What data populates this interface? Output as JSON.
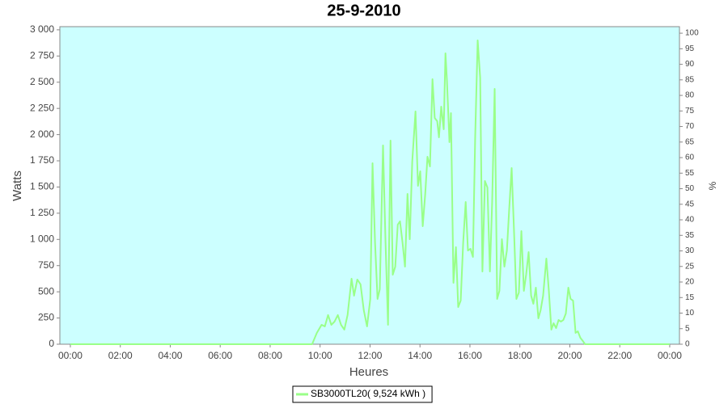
{
  "chart_data": {
    "type": "line",
    "title": "25-9-2010",
    "x_label": "Heures",
    "y_label": "Watts",
    "y2_label": "%",
    "x": [
      0,
      9.68,
      9.87,
      10.06,
      10.19,
      10.32,
      10.45,
      10.58,
      10.71,
      10.84,
      10.97,
      11.1,
      11.26,
      11.36,
      11.49,
      11.62,
      11.75,
      11.88,
      12.01,
      12.1,
      12.2,
      12.3,
      12.39,
      12.52,
      12.62,
      12.72,
      12.82,
      12.91,
      13.01,
      13.11,
      13.2,
      13.3,
      13.4,
      13.5,
      13.59,
      13.69,
      13.82,
      13.92,
      14.01,
      14.11,
      14.21,
      14.3,
      14.4,
      14.5,
      14.59,
      14.69,
      14.76,
      14.85,
      14.95,
      15.02,
      15.08,
      15.18,
      15.24,
      15.34,
      15.44,
      15.53,
      15.63,
      15.73,
      15.83,
      15.92,
      16.02,
      16.12,
      16.21,
      16.31,
      16.41,
      16.5,
      16.6,
      16.7,
      16.8,
      16.89,
      16.99,
      17.09,
      17.18,
      17.28,
      17.38,
      17.48,
      17.57,
      17.67,
      17.77,
      17.86,
      17.96,
      18.06,
      18.16,
      18.25,
      18.35,
      18.45,
      18.54,
      18.64,
      18.74,
      18.83,
      18.93,
      19.06,
      19.16,
      19.26,
      19.35,
      19.45,
      19.55,
      19.64,
      19.74,
      19.84,
      19.94,
      20.03,
      20.13,
      20.23,
      20.32,
      20.42,
      20.52,
      20.61,
      24
    ],
    "series": [
      {
        "name": "SB3000TL20( 9,524 kWh )",
        "color": "#99ff88",
        "values": [
          0,
          0,
          108,
          185,
          170,
          278,
          185,
          216,
          278,
          185,
          139,
          278,
          625,
          463,
          617,
          571,
          324,
          170,
          432,
          1727,
          972,
          432,
          524,
          1897,
          972,
          185,
          1943,
          663,
          740,
          1141,
          1172,
          972,
          740,
          1434,
          1002,
          1743,
          2221,
          1511,
          1650,
          1126,
          1434,
          1789,
          1696,
          2529,
          2159,
          2128,
          1974,
          2267,
          2051,
          2776,
          2514,
          1928,
          2205,
          586,
          926,
          355,
          416,
          972,
          1357,
          894,
          910,
          833,
          1974,
          2899,
          2544,
          694,
          1557,
          1496,
          694,
          1357,
          2436,
          432,
          509,
          1002,
          740,
          894,
          1280,
          1681,
          1049,
          432,
          493,
          1079,
          509,
          663,
          879,
          463,
          386,
          540,
          247,
          324,
          463,
          817,
          509,
          139,
          200,
          154,
          231,
          216,
          231,
          293,
          540,
          432,
          416,
          108,
          123,
          62,
          31,
          0,
          0
        ]
      }
    ],
    "xlim": [
      -0.42,
      24.39
    ],
    "xticks": [
      {
        "value": 0,
        "label": "00:00"
      },
      {
        "value": 2,
        "label": "02:00"
      },
      {
        "value": 4,
        "label": "04:00"
      },
      {
        "value": 6,
        "label": "06:00"
      },
      {
        "value": 8,
        "label": "08:00"
      },
      {
        "value": 10,
        "label": "10:00"
      },
      {
        "value": 12,
        "label": "12:00"
      },
      {
        "value": 14,
        "label": "14:00"
      },
      {
        "value": 16,
        "label": "16:00"
      },
      {
        "value": 18,
        "label": "18:00"
      },
      {
        "value": 20,
        "label": "20:00"
      },
      {
        "value": 22,
        "label": "22:00"
      },
      {
        "value": 24,
        "label": "00:00"
      }
    ],
    "ylim": [
      0,
      3030
    ],
    "yticks": [
      0,
      250,
      500,
      750,
      {
        "value": 1000,
        "label": "1 000"
      },
      {
        "value": 1250,
        "label": "1 250"
      },
      {
        "value": 1500,
        "label": "1 500"
      },
      {
        "value": 1750,
        "label": "1 750"
      },
      {
        "value": 2000,
        "label": "2 000"
      },
      {
        "value": 2250,
        "label": "2 250"
      },
      {
        "value": 2500,
        "label": "2 500"
      },
      {
        "value": 2750,
        "label": "2 750"
      },
      {
        "value": 3000,
        "label": "3 000"
      }
    ],
    "y2lim": [
      0,
      102.1
    ],
    "y2ticks": [
      0,
      5,
      10,
      15,
      20,
      25,
      30,
      35,
      40,
      45,
      50,
      55,
      60,
      65,
      70,
      75,
      80,
      85,
      90,
      95,
      100
    ],
    "background": "#ccffff"
  }
}
